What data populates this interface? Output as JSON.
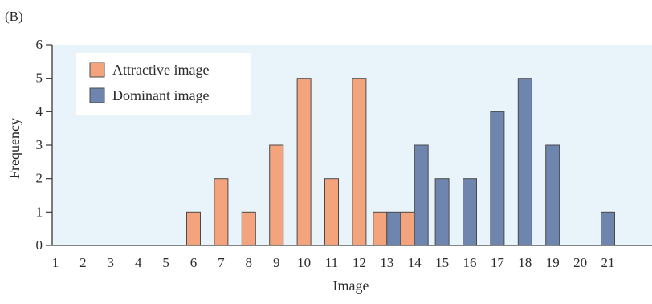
{
  "chart_data": {
    "type": "bar",
    "panel_label": "(B)",
    "xlabel": "Image",
    "ylabel": "Frequency",
    "ylim": [
      0,
      6
    ],
    "yticks": [
      "0",
      "1",
      "2",
      "3",
      "4",
      "5",
      "6"
    ],
    "categories": [
      "1",
      "2",
      "3",
      "4",
      "5",
      "6",
      "7",
      "8",
      "9",
      "10",
      "11",
      "12",
      "13",
      "14",
      "15",
      "16",
      "17",
      "18",
      "19",
      "20",
      "21"
    ],
    "grid": false,
    "legend_position": "top-left",
    "series": [
      {
        "name": "Attractive image",
        "color": "#f4a47c",
        "values": [
          0,
          0,
          0,
          0,
          0,
          1,
          2,
          1,
          3,
          5,
          2,
          5,
          1,
          1,
          0,
          0,
          0,
          0,
          0,
          0,
          0
        ]
      },
      {
        "name": "Dominant image",
        "color": "#6e86ad",
        "values": [
          0,
          0,
          0,
          0,
          0,
          0,
          0,
          0,
          0,
          0,
          0,
          0,
          1,
          3,
          2,
          2,
          4,
          5,
          3,
          0,
          1
        ]
      }
    ],
    "colors": {
      "plot_background": "#e9f3fa",
      "axis": "#3a3a3a",
      "bar_outline": "#4a4a4a"
    }
  }
}
